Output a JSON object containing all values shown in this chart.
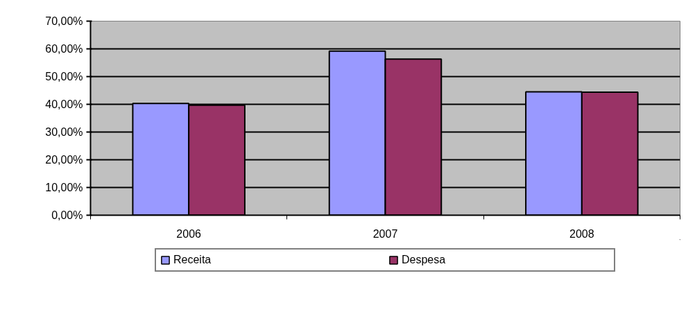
{
  "chart_data": {
    "type": "bar",
    "categories": [
      "2006",
      "2007",
      "2008"
    ],
    "series": [
      {
        "name": "Receita",
        "color": "#9999ff",
        "values": [
          40.3,
          59.2,
          44.5
        ]
      },
      {
        "name": "Despesa",
        "color": "#993366",
        "values": [
          39.7,
          56.3,
          44.4
        ]
      }
    ],
    "ylim": [
      0,
      70
    ],
    "yticks": [
      {
        "value": 0,
        "label": "0,00%"
      },
      {
        "value": 10,
        "label": "10,00%"
      },
      {
        "value": 20,
        "label": "20,00%"
      },
      {
        "value": 30,
        "label": "30,00%"
      },
      {
        "value": 40,
        "label": "40,00%"
      },
      {
        "value": 50,
        "label": "50,00%"
      },
      {
        "value": 60,
        "label": "60,00%"
      },
      {
        "value": 70,
        "label": "70,00%"
      }
    ],
    "grid": "y",
    "legend": "bottom"
  }
}
